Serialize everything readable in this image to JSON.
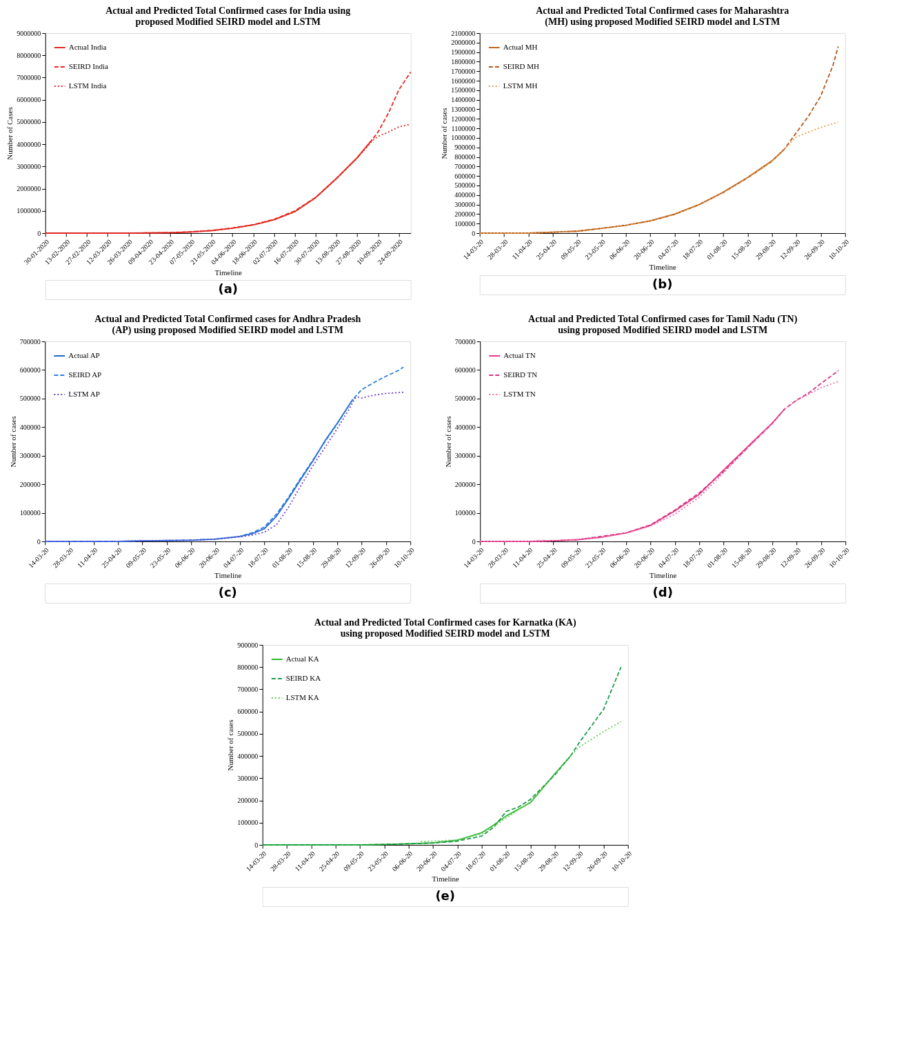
{
  "chart_data": [
    {
      "type": "line",
      "title": "Actual and Predicted Total Confirmed cases for India using proposed Modified SEIRD model and LSTM",
      "xlabel": "Timeline",
      "ylabel": "Number of Cases",
      "annotations": [
        "(a)"
      ],
      "legend": "top left",
      "grid": false,
      "xlim": [
        "2020-01-30",
        "2020-10-02"
      ],
      "xticks": [
        {
          "value": "2020-01-30",
          "label": "30-01-2020"
        },
        {
          "value": "2020-02-13",
          "label": "13-02-2020"
        },
        {
          "value": "2020-02-27",
          "label": "27-02-2020"
        },
        {
          "value": "2020-03-12",
          "label": "12-03-2020"
        },
        {
          "value": "2020-03-26",
          "label": "26-03-2020"
        },
        {
          "value": "2020-04-09",
          "label": "09-04-2020"
        },
        {
          "value": "2020-04-23",
          "label": "23-04-2020"
        },
        {
          "value": "2020-05-07",
          "label": "07-05-2020"
        },
        {
          "value": "2020-05-21",
          "label": "21-05-2020"
        },
        {
          "value": "2020-06-04",
          "label": "04-06-2020"
        },
        {
          "value": "2020-06-18",
          "label": "18-06-2020"
        },
        {
          "value": "2020-07-02",
          "label": "02-07-2020"
        },
        {
          "value": "2020-07-16",
          "label": "16-07-2020"
        },
        {
          "value": "2020-07-30",
          "label": "30-07-2020"
        },
        {
          "value": "2020-08-13",
          "label": "13-08-2020"
        },
        {
          "value": "2020-08-27",
          "label": "27-08-2020"
        },
        {
          "value": "2020-09-10",
          "label": "10-09-2020"
        },
        {
          "value": "2020-09-24",
          "label": "24-09-2020"
        }
      ],
      "ylim": [
        0,
        9000000
      ],
      "yticks": [
        0,
        1000000,
        2000000,
        3000000,
        4000000,
        5000000,
        6000000,
        7000000,
        8000000,
        9000000
      ],
      "series": [
        {
          "name": "Actual India",
          "color": "#e8261f",
          "line_style": "solid",
          "x": [
            "2020-01-30",
            "2020-02-13",
            "2020-02-27",
            "2020-03-12",
            "2020-03-26",
            "2020-04-09",
            "2020-04-23",
            "2020-05-07",
            "2020-05-21",
            "2020-06-04",
            "2020-06-18",
            "2020-07-02",
            "2020-07-16",
            "2020-07-30",
            "2020-08-13",
            "2020-08-27",
            "2020-09-06"
          ],
          "values": [
            0,
            0,
            0,
            0,
            0,
            10000,
            20000,
            50000,
            110000,
            220000,
            370000,
            600000,
            970000,
            1600000,
            2460000,
            3400000,
            4200000
          ]
        },
        {
          "name": "SEIRD India",
          "color": "#e8261f",
          "line_style": "dashed",
          "x": [
            "2020-01-30",
            "2020-02-13",
            "2020-02-27",
            "2020-03-12",
            "2020-03-26",
            "2020-04-09",
            "2020-04-23",
            "2020-05-07",
            "2020-05-21",
            "2020-06-04",
            "2020-06-18",
            "2020-07-02",
            "2020-07-16",
            "2020-07-30",
            "2020-08-13",
            "2020-08-27",
            "2020-09-06",
            "2020-09-10",
            "2020-09-17",
            "2020-09-24",
            "2020-10-02"
          ],
          "values": [
            0,
            0,
            0,
            0,
            0,
            10000,
            20000,
            60000,
            120000,
            230000,
            380000,
            620000,
            1000000,
            1610000,
            2460000,
            3390000,
            4200000,
            4550000,
            5400000,
            6450000,
            7250000
          ]
        },
        {
          "name": "LSTM India",
          "color": "#d8261f",
          "line_style": "dotted",
          "x": [
            "2020-01-30",
            "2020-02-13",
            "2020-02-27",
            "2020-03-12",
            "2020-03-26",
            "2020-04-09",
            "2020-04-23",
            "2020-05-07",
            "2020-05-21",
            "2020-06-04",
            "2020-06-18",
            "2020-07-02",
            "2020-07-16",
            "2020-07-30",
            "2020-08-13",
            "2020-08-27",
            "2020-09-06",
            "2020-09-10",
            "2020-09-17",
            "2020-09-24",
            "2020-10-02"
          ],
          "values": [
            0,
            0,
            0,
            0,
            0,
            10000,
            20000,
            50000,
            110000,
            220000,
            370000,
            600000,
            960000,
            1590000,
            2450000,
            3380000,
            4150000,
            4350000,
            4550000,
            4780000,
            4900000
          ]
        }
      ]
    },
    {
      "type": "line",
      "title": "Actual and Predicted Total Confirmed cases for Maharashtra (MH) using proposed Modified SEIRD model and LSTM",
      "xlabel": "Timeline",
      "ylabel": "Number of cases",
      "annotations": [
        "(b)"
      ],
      "legend": "top left",
      "grid": false,
      "xlim": [
        "2020-03-14",
        "2020-10-10"
      ],
      "xticks": [
        {
          "value": "2020-03-14",
          "label": "14-03-20"
        },
        {
          "value": "2020-03-28",
          "label": "28-03-20"
        },
        {
          "value": "2020-04-11",
          "label": "11-04-20"
        },
        {
          "value": "2020-04-25",
          "label": "25-04-20"
        },
        {
          "value": "2020-05-09",
          "label": "09-05-20"
        },
        {
          "value": "2020-05-23",
          "label": "23-05-20"
        },
        {
          "value": "2020-06-06",
          "label": "06-06-20"
        },
        {
          "value": "2020-06-20",
          "label": "20-06-20"
        },
        {
          "value": "2020-07-04",
          "label": "04-07-20"
        },
        {
          "value": "2020-07-18",
          "label": "18-07-20"
        },
        {
          "value": "2020-08-01",
          "label": "01-08-20"
        },
        {
          "value": "2020-08-15",
          "label": "15-08-20"
        },
        {
          "value": "2020-08-29",
          "label": "29-08-20"
        },
        {
          "value": "2020-09-12",
          "label": "12-09-20"
        },
        {
          "value": "2020-09-26",
          "label": "26-09-20"
        },
        {
          "value": "2020-10-10",
          "label": "10-10-20"
        }
      ],
      "ylim": [
        0,
        2100000
      ],
      "yticks": [
        0,
        100000,
        200000,
        300000,
        400000,
        500000,
        600000,
        700000,
        800000,
        900000,
        1000000,
        1100000,
        1200000,
        1300000,
        1400000,
        1500000,
        1600000,
        1700000,
        1800000,
        1900000,
        2000000,
        2100000
      ],
      "series": [
        {
          "name": "Actual MH",
          "color": "#c0641b",
          "line_style": "solid",
          "x": [
            "2020-03-14",
            "2020-03-28",
            "2020-04-11",
            "2020-04-25",
            "2020-05-09",
            "2020-05-23",
            "2020-06-06",
            "2020-06-20",
            "2020-07-04",
            "2020-07-18",
            "2020-08-01",
            "2020-08-15",
            "2020-08-29",
            "2020-09-05"
          ],
          "values": [
            0,
            0,
            0,
            10000,
            20000,
            50000,
            83000,
            129000,
            200000,
            300000,
            430000,
            585000,
            760000,
            880000
          ]
        },
        {
          "name": "SEIRD MH",
          "color": "#b5561a",
          "line_style": "dashed",
          "x": [
            "2020-03-14",
            "2020-03-28",
            "2020-04-11",
            "2020-04-25",
            "2020-05-09",
            "2020-05-23",
            "2020-06-06",
            "2020-06-20",
            "2020-07-04",
            "2020-07-18",
            "2020-08-01",
            "2020-08-15",
            "2020-08-29",
            "2020-09-05",
            "2020-09-12",
            "2020-09-19",
            "2020-09-26",
            "2020-10-03",
            "2020-10-06"
          ],
          "values": [
            0,
            0,
            0,
            10000,
            20000,
            50000,
            83000,
            127000,
            197000,
            297000,
            428000,
            580000,
            755000,
            880000,
            1055000,
            1230000,
            1440000,
            1760000,
            1960000
          ]
        },
        {
          "name": "LSTM MH",
          "color": "#e0a050",
          "line_style": "dotted",
          "x": [
            "2020-03-14",
            "2020-03-28",
            "2020-04-11",
            "2020-04-25",
            "2020-05-09",
            "2020-05-23",
            "2020-06-06",
            "2020-06-20",
            "2020-07-04",
            "2020-07-18",
            "2020-08-01",
            "2020-08-15",
            "2020-08-29",
            "2020-09-05",
            "2020-09-12",
            "2020-09-19",
            "2020-09-26",
            "2020-10-06"
          ],
          "values": [
            0,
            0,
            0,
            10000,
            20000,
            50000,
            82000,
            126000,
            195000,
            295000,
            425000,
            580000,
            755000,
            880000,
            1010000,
            1060000,
            1110000,
            1165000
          ]
        }
      ]
    },
    {
      "type": "line",
      "title": "Actual and Predicted Total Confirmed cases for Andhra Pradesh (AP) using proposed Modified SEIRD model and LSTM",
      "xlabel": "Timeline",
      "ylabel": "Number of cases",
      "annotations": [
        "(c)"
      ],
      "legend": "top left",
      "grid": false,
      "xlim": [
        "2020-03-14",
        "2020-10-10"
      ],
      "xticks": [
        {
          "value": "2020-03-14",
          "label": "14-03-20"
        },
        {
          "value": "2020-03-28",
          "label": "28-03-20"
        },
        {
          "value": "2020-04-11",
          "label": "11-04-20"
        },
        {
          "value": "2020-04-25",
          "label": "25-04-20"
        },
        {
          "value": "2020-05-09",
          "label": "09-05-20"
        },
        {
          "value": "2020-05-23",
          "label": "23-05-20"
        },
        {
          "value": "2020-06-06",
          "label": "06-06-20"
        },
        {
          "value": "2020-06-20",
          "label": "20-06-20"
        },
        {
          "value": "2020-07-04",
          "label": "04-07-20"
        },
        {
          "value": "2020-07-18",
          "label": "18-07-20"
        },
        {
          "value": "2020-08-01",
          "label": "01-08-20"
        },
        {
          "value": "2020-08-15",
          "label": "15-08-20"
        },
        {
          "value": "2020-08-29",
          "label": "29-08-20"
        },
        {
          "value": "2020-09-12",
          "label": "12-09-20"
        },
        {
          "value": "2020-09-26",
          "label": "26-09-20"
        },
        {
          "value": "2020-10-10",
          "label": "10-10-20"
        }
      ],
      "ylim": [
        0,
        700000
      ],
      "yticks": [
        0,
        100000,
        200000,
        300000,
        400000,
        500000,
        600000,
        700000
      ],
      "series": [
        {
          "name": "Actual AP",
          "color": "#1f66cc",
          "line_style": "solid",
          "x": [
            "2020-03-14",
            "2020-03-28",
            "2020-04-11",
            "2020-04-25",
            "2020-05-09",
            "2020-05-23",
            "2020-06-06",
            "2020-06-20",
            "2020-07-04",
            "2020-07-11",
            "2020-07-18",
            "2020-07-25",
            "2020-08-01",
            "2020-08-08",
            "2020-08-15",
            "2020-08-22",
            "2020-08-29",
            "2020-09-07"
          ],
          "values": [
            0,
            0,
            0,
            0,
            2000,
            3000,
            4000,
            8000,
            17000,
            27000,
            44000,
            88000,
            150000,
            217000,
            282000,
            353000,
            414000,
            498000
          ]
        },
        {
          "name": "SEIRD AP",
          "color": "#2b7de0",
          "line_style": "dashed",
          "x": [
            "2020-03-14",
            "2020-03-28",
            "2020-04-11",
            "2020-04-25",
            "2020-05-09",
            "2020-05-23",
            "2020-06-06",
            "2020-06-20",
            "2020-07-04",
            "2020-07-11",
            "2020-07-18",
            "2020-07-25",
            "2020-08-01",
            "2020-08-08",
            "2020-08-15",
            "2020-08-22",
            "2020-08-29",
            "2020-09-07",
            "2020-09-12",
            "2020-09-19",
            "2020-09-26",
            "2020-10-03",
            "2020-10-06"
          ],
          "values": [
            0,
            0,
            0,
            0,
            2000,
            3000,
            5000,
            8000,
            18000,
            30000,
            50000,
            95000,
            155000,
            222000,
            285000,
            350000,
            412000,
            498000,
            531000,
            556000,
            578000,
            598000,
            610000
          ]
        },
        {
          "name": "LSTM AP",
          "color": "#6a3fd8",
          "line_style": "dotted",
          "x": [
            "2020-03-14",
            "2020-03-28",
            "2020-04-11",
            "2020-04-25",
            "2020-05-09",
            "2020-05-23",
            "2020-06-06",
            "2020-06-20",
            "2020-07-04",
            "2020-07-11",
            "2020-07-18",
            "2020-07-25",
            "2020-08-01",
            "2020-08-08",
            "2020-08-15",
            "2020-08-22",
            "2020-08-29",
            "2020-09-05",
            "2020-09-08",
            "2020-09-10",
            "2020-09-12",
            "2020-09-19",
            "2020-09-26",
            "2020-10-06"
          ],
          "values": [
            0,
            0,
            0,
            0,
            2000,
            3000,
            4000,
            8000,
            16000,
            22000,
            32000,
            58000,
            120000,
            195000,
            265000,
            330000,
            395000,
            465000,
            500000,
            505000,
            502000,
            512000,
            518000,
            522000
          ]
        }
      ]
    },
    {
      "type": "line",
      "title": "Actual and Predicted Total Confirmed cases for Tamil Nadu (TN) using proposed Modified SEIRD model and LSTM",
      "xlabel": "Timeline",
      "ylabel": "Number of cases",
      "annotations": [
        "(d)"
      ],
      "legend": "top left",
      "grid": false,
      "xlim": [
        "2020-03-14",
        "2020-10-10"
      ],
      "xticks": [
        {
          "value": "2020-03-14",
          "label": "14-03-20"
        },
        {
          "value": "2020-03-28",
          "label": "28-03-20"
        },
        {
          "value": "2020-04-11",
          "label": "11-04-20"
        },
        {
          "value": "2020-04-25",
          "label": "25-04-20"
        },
        {
          "value": "2020-05-09",
          "label": "09-05-20"
        },
        {
          "value": "2020-05-23",
          "label": "23-05-20"
        },
        {
          "value": "2020-06-06",
          "label": "06-06-20"
        },
        {
          "value": "2020-06-20",
          "label": "20-06-20"
        },
        {
          "value": "2020-07-04",
          "label": "04-07-20"
        },
        {
          "value": "2020-07-18",
          "label": "18-07-20"
        },
        {
          "value": "2020-08-01",
          "label": "01-08-20"
        },
        {
          "value": "2020-08-15",
          "label": "15-08-20"
        },
        {
          "value": "2020-08-29",
          "label": "29-08-20"
        },
        {
          "value": "2020-09-12",
          "label": "12-09-20"
        },
        {
          "value": "2020-09-26",
          "label": "26-09-20"
        },
        {
          "value": "2020-10-10",
          "label": "10-10-20"
        }
      ],
      "ylim": [
        0,
        700000
      ],
      "yticks": [
        0,
        100000,
        200000,
        300000,
        400000,
        500000,
        600000,
        700000
      ],
      "series": [
        {
          "name": "Actual TN",
          "color": "#e8388a",
          "line_style": "solid",
          "x": [
            "2020-03-14",
            "2020-03-28",
            "2020-04-11",
            "2020-04-25",
            "2020-05-09",
            "2020-05-23",
            "2020-06-06",
            "2020-06-20",
            "2020-07-04",
            "2020-07-18",
            "2020-08-01",
            "2020-08-15",
            "2020-08-29",
            "2020-09-05"
          ],
          "values": [
            0,
            0,
            0,
            2000,
            6000,
            15000,
            30000,
            56000,
            107000,
            165000,
            250000,
            333000,
            415000,
            463000
          ]
        },
        {
          "name": "SEIRD TN",
          "color": "#d6337f",
          "line_style": "dashed",
          "x": [
            "2020-03-14",
            "2020-03-28",
            "2020-04-11",
            "2020-04-25",
            "2020-05-09",
            "2020-05-23",
            "2020-06-06",
            "2020-06-20",
            "2020-07-04",
            "2020-07-18",
            "2020-08-01",
            "2020-08-15",
            "2020-08-29",
            "2020-09-05",
            "2020-09-12",
            "2020-09-19",
            "2020-09-26",
            "2020-10-06"
          ],
          "values": [
            0,
            0,
            0,
            2000,
            6000,
            18000,
            30000,
            58000,
            110000,
            170000,
            245000,
            330000,
            413000,
            463000,
            495000,
            520000,
            553000,
            598000
          ]
        },
        {
          "name": "LSTM TN",
          "color": "#f06aa8",
          "line_style": "dotted",
          "x": [
            "2020-03-14",
            "2020-03-28",
            "2020-04-11",
            "2020-04-25",
            "2020-05-09",
            "2020-05-23",
            "2020-06-06",
            "2020-06-20",
            "2020-07-04",
            "2020-07-18",
            "2020-08-01",
            "2020-08-15",
            "2020-08-29",
            "2020-09-05",
            "2020-09-12",
            "2020-09-19",
            "2020-09-26",
            "2020-10-06"
          ],
          "values": [
            0,
            0,
            0,
            2000,
            6000,
            15000,
            29000,
            54000,
            95000,
            155000,
            240000,
            328000,
            413000,
            463000,
            493000,
            515000,
            538000,
            560000
          ]
        }
      ]
    },
    {
      "type": "line",
      "title": "Actual and Predicted Total Confirmed cases for Karnatka (KA) using proposed Modified SEIRD model and LSTM",
      "xlabel": "Timeline",
      "ylabel": "Number of cases",
      "annotations": [
        "(e)"
      ],
      "legend": "top left",
      "grid": false,
      "xlim": [
        "2020-03-14",
        "2020-10-10"
      ],
      "xticks": [
        {
          "value": "2020-03-14",
          "label": "14-03-20"
        },
        {
          "value": "2020-03-28",
          "label": "28-03-20"
        },
        {
          "value": "2020-04-11",
          "label": "11-04-20"
        },
        {
          "value": "2020-04-25",
          "label": "25-04-20"
        },
        {
          "value": "2020-05-09",
          "label": "09-05-20"
        },
        {
          "value": "2020-05-23",
          "label": "23-05-20"
        },
        {
          "value": "2020-06-06",
          "label": "06-06-20"
        },
        {
          "value": "2020-06-20",
          "label": "20-06-20"
        },
        {
          "value": "2020-07-04",
          "label": "04-07-20"
        },
        {
          "value": "2020-07-18",
          "label": "18-07-20"
        },
        {
          "value": "2020-08-01",
          "label": "01-08-20"
        },
        {
          "value": "2020-08-15",
          "label": "15-08-20"
        },
        {
          "value": "2020-08-29",
          "label": "29-08-20"
        },
        {
          "value": "2020-09-12",
          "label": "12-09-20"
        },
        {
          "value": "2020-09-26",
          "label": "26-09-20"
        },
        {
          "value": "2020-10-10",
          "label": "10-10-20"
        }
      ],
      "ylim": [
        0,
        900000
      ],
      "yticks": [
        0,
        100000,
        200000,
        300000,
        400000,
        500000,
        600000,
        700000,
        800000,
        900000
      ],
      "series": [
        {
          "name": "Actual KA",
          "color": "#2db82d",
          "line_style": "solid",
          "x": [
            "2020-03-14",
            "2020-03-28",
            "2020-04-11",
            "2020-04-25",
            "2020-05-09",
            "2020-05-23",
            "2020-06-06",
            "2020-06-20",
            "2020-07-04",
            "2020-07-18",
            "2020-07-25",
            "2020-08-01",
            "2020-08-15",
            "2020-08-29",
            "2020-09-07"
          ],
          "values": [
            0,
            0,
            0,
            0,
            0,
            2000,
            5000,
            9000,
            21000,
            55000,
            90000,
            130000,
            190000,
            320000,
            400000
          ]
        },
        {
          "name": "SEIRD KA",
          "color": "#1a9a4a",
          "line_style": "dashed",
          "x": [
            "2020-03-14",
            "2020-03-28",
            "2020-04-11",
            "2020-04-25",
            "2020-05-09",
            "2020-05-23",
            "2020-06-06",
            "2020-06-20",
            "2020-07-04",
            "2020-07-18",
            "2020-07-25",
            "2020-08-01",
            "2020-08-08",
            "2020-08-15",
            "2020-08-29",
            "2020-09-07",
            "2020-09-12",
            "2020-09-26",
            "2020-10-06"
          ],
          "values": [
            0,
            0,
            0,
            0,
            0,
            2000,
            5000,
            8500,
            17000,
            40000,
            80000,
            150000,
            170000,
            205000,
            315000,
            400000,
            460000,
            610000,
            800000
          ]
        },
        {
          "name": "LSTM KA",
          "color": "#66cc55",
          "line_style": "dotted",
          "x": [
            "2020-06-13",
            "2020-06-20",
            "2020-07-04",
            "2020-07-18",
            "2020-07-25",
            "2020-08-01",
            "2020-08-15",
            "2020-08-29",
            "2020-09-07",
            "2020-09-12",
            "2020-09-26",
            "2020-10-06"
          ],
          "values": [
            15000,
            17000,
            22000,
            50000,
            85000,
            120000,
            195000,
            320000,
            400000,
            440000,
            510000,
            555000
          ]
        }
      ]
    }
  ]
}
